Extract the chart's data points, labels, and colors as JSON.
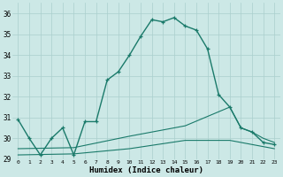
{
  "xlabel": "Humidex (Indice chaleur)",
  "ylabel": "",
  "xlim": [
    -0.5,
    23.5
  ],
  "ylim": [
    29,
    36.5
  ],
  "yticks": [
    29,
    30,
    31,
    32,
    33,
    34,
    35,
    36
  ],
  "xticks": [
    0,
    1,
    2,
    3,
    4,
    5,
    6,
    7,
    8,
    9,
    10,
    11,
    12,
    13,
    14,
    15,
    16,
    17,
    18,
    19,
    20,
    21,
    22,
    23
  ],
  "bg_color": "#cce8e6",
  "grid_color": "#aacfcd",
  "line_color": "#1a7a6a",
  "curve1_x": [
    0,
    1,
    2,
    3,
    4,
    5,
    6,
    7,
    8,
    9,
    10,
    11,
    12,
    13,
    14,
    15,
    16,
    17,
    18,
    19,
    20,
    21,
    22,
    23
  ],
  "curve1_y": [
    30.9,
    30.0,
    29.2,
    30.0,
    30.5,
    29.2,
    30.8,
    30.8,
    32.8,
    33.2,
    34.0,
    34.9,
    35.7,
    35.6,
    35.8,
    35.4,
    35.2,
    34.3,
    32.1,
    31.5,
    30.5,
    30.3,
    29.8,
    29.7
  ],
  "curve2_x": [
    0,
    5,
    10,
    15,
    19,
    20,
    21,
    22,
    23
  ],
  "curve2_y": [
    29.5,
    29.55,
    30.1,
    30.6,
    31.5,
    30.5,
    30.3,
    30.0,
    29.8
  ],
  "curve3_x": [
    0,
    5,
    10,
    15,
    19,
    20,
    21,
    22,
    23
  ],
  "curve3_y": [
    29.2,
    29.25,
    29.5,
    29.9,
    29.9,
    29.8,
    29.7,
    29.6,
    29.5
  ]
}
